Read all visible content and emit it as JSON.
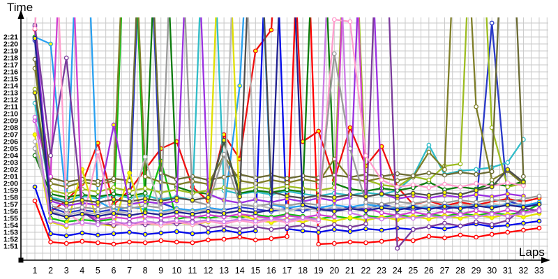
{
  "chart_data": {
    "type": "line",
    "title": "",
    "ylabel": "Time",
    "xlabel": "Laps",
    "legend": "none",
    "grid": {
      "enabled": true,
      "color": "#c9c9c9",
      "x_minor_step_laps": 0.5,
      "y_step_seconds": 1
    },
    "axis_color": "#000000",
    "x_axis": {
      "min": 1,
      "max": 33,
      "step": 1
    },
    "x_tick_labels": [
      1,
      2,
      3,
      4,
      5,
      6,
      7,
      8,
      9,
      10,
      11,
      12,
      13,
      14,
      15,
      16,
      17,
      18,
      19,
      20,
      21,
      22,
      23,
      24,
      25,
      26,
      27,
      28,
      29,
      30,
      31,
      32,
      33
    ],
    "y_axis_labeled_range": [
      "1:51",
      "2:21"
    ],
    "y_axis_base_seconds": 111,
    "y_tick_labels": [
      "1:51",
      "1:52",
      "1:53",
      "1:54",
      "1:55",
      "1:56",
      "1:57",
      "1:58",
      "1:59",
      "2:00",
      "2:01",
      "2:02",
      "2:03",
      "2:04",
      "2:05",
      "2:06",
      "2:07",
      "2:08",
      "2:09",
      "2:10",
      "2:11",
      "2:12",
      "2:13",
      "2:14",
      "2:15",
      "2:16",
      "2:17",
      "2:18",
      "2:19",
      "2:20",
      "2:21"
    ],
    "offscale_clip_seconds": 175,
    "series_note": "lap_times_seconds are estimated from pixels; values of 175 represent pit/slow laps that spike above the visible plot top (~2:24); null = car completed fewer laps",
    "series": [
      {
        "color": "#ff0000",
        "marker_fill": "#ffffff",
        "lap_times_seconds": [
          117.5,
          111.6,
          111.4,
          111.7,
          111.5,
          111.3,
          111.6,
          111.5,
          111.8,
          111.6,
          111.5,
          111.9,
          112,
          112.3,
          111.9,
          112.1,
          112.4,
          175,
          111.3,
          111.4,
          111.6,
          111.5,
          111.7,
          112,
          111.8,
          112.4,
          112.2,
          112.6,
          112.3,
          112.7,
          113,
          113.3,
          113.6
        ]
      },
      {
        "color": "#ee0e0e",
        "marker_fill": "#ffff00",
        "lap_times_seconds": [
          142.1,
          116,
          117.5,
          120,
          125.8,
          117,
          119,
          122,
          125,
          126,
          119.5,
          117.5,
          127,
          123.5,
          139,
          142,
          175,
          126,
          127.5,
          120.5,
          128,
          122.5,
          125.3,
          119.5,
          117,
          117.5,
          116.8,
          117.3,
          116.9,
          117.4,
          117.8,
          117.4,
          117.9
        ]
      },
      {
        "color": "#0008e8",
        "marker_fill": "#ffff00",
        "lap_times_seconds": [
          119.5,
          112.8,
          112.5,
          112.9,
          112.6,
          112.8,
          113,
          112.7,
          112.9,
          113.1,
          112.8,
          113,
          113.3,
          112.9,
          113.2,
          175,
          113.5,
          113.2,
          113,
          113.4,
          113.1,
          113.5,
          113.3,
          113.6,
          113.4,
          113.8,
          113.5,
          113.9,
          114.2,
          113.8,
          114,
          114.3,
          114.6
        ]
      },
      {
        "color": "#2838c8",
        "marker_fill": "#ffffff",
        "lap_times_seconds": [
          140.5,
          116.5,
          115.8,
          116.2,
          115.9,
          116.3,
          116,
          175,
          117.2,
          116.4,
          116.1,
          116.5,
          116.2,
          116.6,
          116.3,
          116,
          116.4,
          116.1,
          116.5,
          116.2,
          116.6,
          116.3,
          117,
          116.5,
          116.2,
          116.6,
          116.3,
          116.7,
          116.4,
          143,
          117.5,
          116.8,
          117.2
        ]
      },
      {
        "color": "#28a0f0",
        "marker_fill": "#ffff00",
        "lap_times_seconds": [
          141,
          140,
          117,
          175,
          117.5,
          116.2,
          116.6,
          116.3,
          116,
          116.4,
          116.1,
          116.5,
          116.2,
          134,
          175,
          117,
          116.5,
          116.8,
          116.5,
          116.9,
          116.6,
          117,
          116.7,
          116.4,
          116.8,
          116.5,
          116.9,
          116.6,
          117,
          116.7,
          117.1,
          116.8,
          117.3
        ]
      },
      {
        "color": "#30bcc8",
        "marker_fill": "#ffffff",
        "lap_times_seconds": [
          131.5,
          118,
          117.5,
          118.2,
          117.8,
          118.4,
          117.9,
          118.3,
          117.7,
          118.1,
          117.6,
          175,
          119,
          118.5,
          118.8,
          118.4,
          118.9,
          118.5,
          118.2,
          118.6,
          118.3,
          118.7,
          118.4,
          119,
          121,
          125.5,
          121.3,
          121.8,
          122,
          122.3,
          123,
          126.3,
          null
        ]
      },
      {
        "color": "#10c010",
        "marker_fill": "#ffff00",
        "lap_times_seconds": [
          141,
          115,
          114.5,
          114.8,
          114.6,
          114.9,
          175,
          116,
          123.2,
          114.9,
          115.3,
          115,
          115.4,
          115.1,
          115.5,
          115.2,
          115.6,
          115.3,
          114.9,
          115.3,
          115,
          115.4,
          115.1,
          115.5,
          115.2,
          115.6,
          115.3,
          115.7,
          115.4,
          115.8,
          115.5,
          115.9,
          117
        ]
      },
      {
        "color": "#0b7b0b",
        "marker_fill": "#ffffff",
        "lap_times_seconds": [
          124,
          118.5,
          118,
          118.4,
          118.1,
          118.5,
          118.2,
          118.6,
          175,
          119.5,
          118.8,
          118.5,
          126,
          118.6,
          119,
          118.7,
          119.1,
          118.8,
          175,
          120,
          119.2,
          118.9,
          119.3,
          119,
          119.4,
          120.2,
          119.1,
          119.5,
          119.2,
          120,
          119.6,
          120.3,
          null
        ]
      },
      {
        "color": "#9cbc20",
        "marker_fill": "#ffffff",
        "lap_times_seconds": [
          133.5,
          119,
          118.5,
          119.2,
          118.8,
          119.4,
          118.9,
          119.3,
          118.7,
          119.1,
          118.6,
          119,
          119.4,
          119.1,
          119.5,
          119.2,
          119.6,
          119.3,
          119,
          119.4,
          175,
          120.5,
          119.8,
          119.5,
          121,
          120.5,
          122.5,
          122.8,
          175,
          128,
          119.5,
          120,
          null
        ]
      },
      {
        "color": "#7e7e28",
        "marker_fill": "#ffffff",
        "lap_times_seconds": [
          136.5,
          120,
          119.5,
          120.2,
          119.8,
          120.4,
          175,
          121,
          120.2,
          119.8,
          120.3,
          119.9,
          124,
          120.4,
          120,
          120.5,
          120.1,
          120.6,
          120.2,
          123.5,
          120.7,
          120.3,
          120.8,
          120.4,
          120.9,
          124.5,
          122,
          175,
          131,
          120.5,
          121.8,
          119.9,
          null
        ]
      },
      {
        "color": "#6b6b33",
        "marker_fill": "#ffffff",
        "lap_times_seconds": [
          137.8,
          120.8,
          120.2,
          120.6,
          120.3,
          120.7,
          120.4,
          175,
          121.5,
          120.6,
          121,
          120.5,
          120.9,
          121.3,
          120.8,
          121.2,
          120.7,
          121.1,
          120.8,
          121.2,
          120.9,
          121.3,
          121,
          121.4,
          121.1,
          121.5,
          121.2,
          121.6,
          121.3,
          121.7,
          175,
          121,
          null
        ]
      },
      {
        "color": "#e0e000",
        "marker_fill": "#ffff00",
        "lap_times_seconds": [
          127,
          114.5,
          113.8,
          122,
          114.2,
          113.9,
          121.5,
          114.3,
          114,
          114.4,
          114.1,
          114.5,
          175,
          115.5,
          114.8,
          114.4,
          114.9,
          114.5,
          115,
          114.6,
          115.1,
          114.7,
          115.2,
          114.8,
          115.3,
          114.9,
          115.4,
          115,
          115.5,
          115.1,
          115.6,
          115.2,
          115.7
        ]
      },
      {
        "color": "#d040d0",
        "marker_fill": "#ffffff",
        "lap_times_seconds": [
          129,
          121,
          175,
          116,
          114.8,
          115.2,
          114.9,
          115.3,
          115,
          115.4,
          115.1,
          115.5,
          115.2,
          115.6,
          115.3,
          115,
          115.4,
          115.1,
          115.5,
          115.2,
          175,
          116.5,
          115.8,
          115.4,
          115.9,
          115.5,
          116,
          115.6,
          116.1,
          115.7,
          116.2,
          115.8,
          116.3
        ]
      },
      {
        "color": "#9a30e0",
        "marker_fill": "#ffff00",
        "lap_times_seconds": [
          142.5,
          117.5,
          116.8,
          117.2,
          116.9,
          128.4,
          117,
          117.4,
          117.1,
          117.5,
          175,
          118.5,
          117.6,
          117.2,
          117.7,
          117.3,
          117.8,
          117.4,
          117.9,
          117.5,
          118,
          175,
          118.6,
          117.8,
          118.2,
          117.9,
          118.3,
          118,
          118.4,
          118.1,
          118.5,
          118.2,
          null
        ]
      },
      {
        "color": "#7a3b9b",
        "marker_fill": "#ffffff",
        "lap_times_seconds": [
          142.7,
          124,
          138,
          116,
          114.4,
          114,
          114.4,
          114.1,
          114.5,
          114.2,
          114.6,
          113.6,
          113.9,
          113.5,
          113.8,
          113.4,
          113.7,
          114,
          113.6,
          114.1,
          113.7,
          114.2,
          175,
          110.7,
          113.4,
          113.8,
          114.3,
          113.9,
          114.5,
          114.1,
          114.7,
          116.5,
          116
        ]
      },
      {
        "color": "#ff9ccc",
        "marker_fill": "#ffffff",
        "lap_times_seconds": [
          142.2,
          175,
          116,
          114.2,
          124.5,
          114.3,
          113.9,
          114.4,
          114,
          114.5,
          114.1,
          114.6,
          114.2,
          114.7,
          114.3,
          114.8,
          114.4,
          114.9,
          114.5,
          143.5,
          143.2,
          124,
          120.5,
          119.5,
          119.8,
          119.4,
          119.9,
          119.5,
          120,
          119.6,
          120.1,
          119.7,
          null
        ]
      },
      {
        "color": "#9a9a9a",
        "marker_fill": "#ffffff",
        "lap_times_seconds": [
          125,
          116.8,
          116.2,
          116.6,
          116.3,
          116.7,
          116.4,
          116.8,
          116.5,
          175,
          117.5,
          116.9,
          124.2,
          117,
          116.7,
          117.1,
          116.8,
          117.2,
          116.9,
          138.6,
          125,
          117.3,
          117,
          117.4,
          117.1,
          117.5,
          117.2,
          117.6,
          117.3,
          117.7,
          117.4,
          117.8,
          118.2
        ]
      },
      {
        "color": "#4e4e4e",
        "marker_fill": "#ffff00",
        "lap_times_seconds": [
          133,
          117.8,
          117.2,
          117.6,
          117.3,
          117.7,
          117.4,
          117.8,
          117.5,
          117.9,
          117.6,
          118,
          126.2,
          118.1,
          175,
          118.8,
          118.2,
          117.9,
          118.3,
          118,
          118.4,
          118.1,
          118.5,
          118.2,
          118.6,
          118.3,
          118.7,
          118.4,
          119,
          119.5,
          122,
          120.2,
          null
        ]
      },
      {
        "color": "#b8b8b8",
        "marker_fill": "#ffffff",
        "lap_times_seconds": [
          126,
          116,
          115.5,
          115.9,
          115.6,
          116,
          115.7,
          123.8,
          115.8,
          116.2,
          115.9,
          116.3,
          116,
          175,
          117,
          116.4,
          116.1,
          116.5,
          116.2,
          116.6,
          116.3,
          116.7,
          116.4,
          116.8,
          116.5,
          116.9,
          116.6,
          117,
          116.7,
          117.1,
          116.8,
          117.2,
          null
        ]
      },
      {
        "color": "#202090",
        "marker_fill": "#ffff00",
        "lap_times_seconds": [
          140.8,
          115.8,
          115.2,
          115.6,
          115.3,
          115.7,
          115.4,
          115.8,
          115.5,
          115.9,
          115.6,
          116,
          115.7,
          116.1,
          115.8,
          116.2,
          175,
          116.9,
          116.3,
          116,
          116.4,
          116.1,
          116.5,
          116.2,
          116.6,
          116.3,
          116.7,
          116.4,
          116.8,
          116.5,
          116.9,
          116.6,
          117
        ]
      },
      {
        "color": "#cc7ae6",
        "marker_fill": "#ffffff",
        "lap_times_seconds": [
          129.5,
          114.6,
          114,
          114.4,
          114.1,
          114.5,
          114.2,
          114.6,
          114.3,
          114.7,
          114.4,
          114.8,
          114.5,
          114.9,
          114.6,
          115,
          114.7,
          115.1,
          114.8,
          175,
          115.8,
          115.2,
          114.9,
          115.3,
          115,
          115.4,
          115.1,
          115.5,
          115.2,
          115.6,
          115.3,
          115.7,
          116.1
        ]
      }
    ]
  }
}
